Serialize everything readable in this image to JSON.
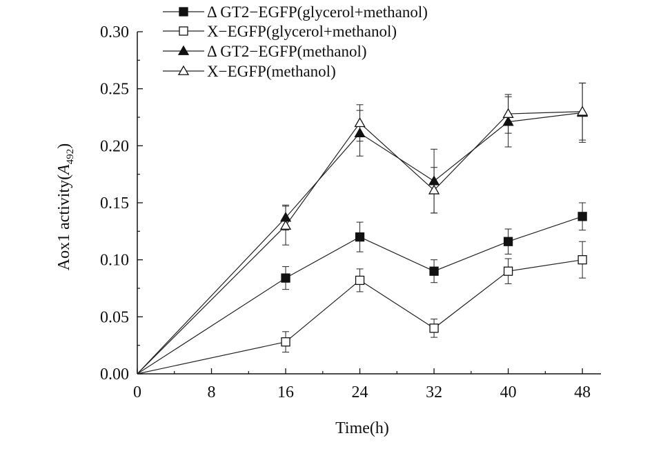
{
  "chart_data": {
    "type": "line",
    "title": "",
    "xlabel": "Time(h)",
    "ylabel": "Aox1 activity(A492)",
    "ylabel_prefix": "Aox1 activity(",
    "ylabel_italic": "A",
    "ylabel_subscript": "492",
    "ylabel_suffix": ")",
    "xlim": [
      0,
      50
    ],
    "ylim": [
      0,
      0.3
    ],
    "x_ticks": [
      0,
      8,
      16,
      24,
      32,
      40,
      48
    ],
    "x_tick_labels": [
      "0",
      "8",
      "16",
      "24",
      "32",
      "40",
      "48"
    ],
    "y_ticks": [
      0,
      0.05,
      0.1,
      0.15,
      0.2,
      0.25,
      0.3
    ],
    "y_tick_labels": [
      "0.00",
      "0.05",
      "0.10",
      "0.15",
      "0.20",
      "0.25",
      "0.30"
    ],
    "grid": false,
    "legend_position": "top",
    "series": [
      {
        "name": "Δ GT2−EGFP(glycerol+methanol)",
        "marker": "square-filled",
        "x": [
          0,
          16,
          24,
          32,
          40,
          48
        ],
        "values": [
          0.0,
          0.084,
          0.12,
          0.09,
          0.116,
          0.138
        ],
        "errors": [
          0,
          0.01,
          0.013,
          0.01,
          0.011,
          0.012
        ]
      },
      {
        "name": "X−EGFP(glycerol+methanol)",
        "marker": "square-open",
        "x": [
          0,
          16,
          24,
          32,
          40,
          48
        ],
        "values": [
          0.0,
          0.028,
          0.082,
          0.04,
          0.09,
          0.1
        ],
        "errors": [
          0,
          0.009,
          0.01,
          0.008,
          0.011,
          0.016
        ]
      },
      {
        "name": "Δ GT2−EGFP(methanol)",
        "marker": "triangle-filled",
        "x": [
          0,
          16,
          24,
          32,
          40,
          48
        ],
        "values": [
          0.0,
          0.137,
          0.211,
          0.169,
          0.221,
          0.229
        ],
        "errors": [
          0,
          0.011,
          0.02,
          0.028,
          0.022,
          0.026
        ]
      },
      {
        "name": "X−EGFP(methanol)",
        "marker": "triangle-open",
        "x": [
          0,
          16,
          24,
          32,
          40,
          48
        ],
        "values": [
          0.0,
          0.13,
          0.22,
          0.161,
          0.228,
          0.23
        ],
        "errors": [
          0,
          0.017,
          0.016,
          0.02,
          0.017,
          0.025
        ]
      }
    ]
  }
}
